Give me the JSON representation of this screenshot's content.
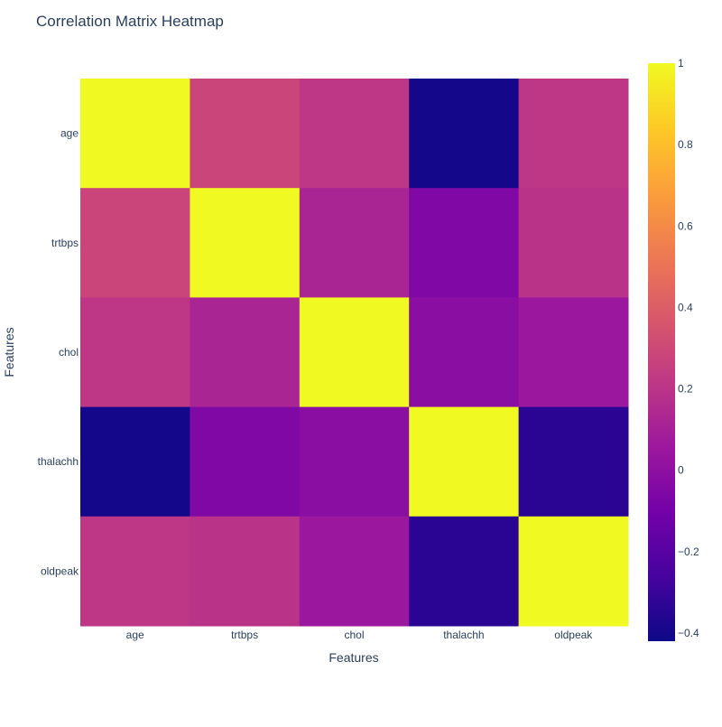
{
  "chart_data": {
    "type": "heatmap",
    "title": "Correlation Matrix Heatmap",
    "xlabel": "Features",
    "ylabel": "Features",
    "x": [
      "age",
      "trtbps",
      "chol",
      "thalachh",
      "oldpeak"
    ],
    "y": [
      "age",
      "trtbps",
      "chol",
      "thalachh",
      "oldpeak"
    ],
    "z": [
      [
        1.0,
        0.28,
        0.21,
        -0.4,
        0.21
      ],
      [
        0.28,
        1.0,
        0.12,
        -0.05,
        0.19
      ],
      [
        0.21,
        0.12,
        1.0,
        -0.01,
        0.05
      ],
      [
        -0.4,
        -0.05,
        -0.01,
        1.0,
        -0.34
      ],
      [
        0.21,
        0.19,
        0.05,
        -0.34,
        1.0
      ]
    ],
    "zrange": [
      -0.42,
      1.0
    ],
    "colorbar": {
      "tick_values": [
        1,
        0.8,
        0.6,
        0.4,
        0.2,
        0,
        -0.2,
        -0.4
      ],
      "tick_labels": [
        "1",
        "0.8",
        "0.6",
        "0.4",
        "0.2",
        "0",
        "−0.2",
        "−0.4"
      ]
    },
    "colorscale": [
      "#0d0887",
      "#46039f",
      "#7201a8",
      "#9c179e",
      "#bd3786",
      "#d8576b",
      "#ed7953",
      "#fb9f3a",
      "#fdca26",
      "#f0f921"
    ],
    "grid": false,
    "legend": "colorbar-right"
  }
}
